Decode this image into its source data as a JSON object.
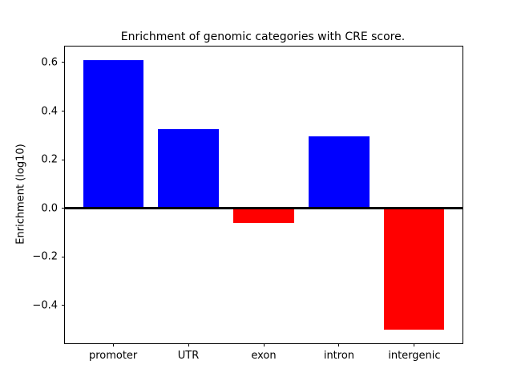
{
  "chart_data": {
    "type": "bar",
    "title": "Enrichment of genomic categories with CRE score.",
    "xlabel": "",
    "ylabel": "Enrichment (log10)",
    "categories": [
      "promoter",
      "UTR",
      "exon",
      "intron",
      "intergenic"
    ],
    "values": [
      0.61,
      0.325,
      -0.06,
      0.295,
      -0.5
    ],
    "positive_color": "#0000ff",
    "negative_color": "#ff0000",
    "bar_width": 0.8,
    "xlim": [
      -0.64,
      4.64
    ],
    "ylim": [
      -0.556,
      0.666
    ],
    "yticks": [
      0.6,
      0.4,
      0.2,
      0.0,
      -0.2,
      -0.4
    ],
    "ytick_labels": [
      "0.6",
      "0.4",
      "0.2",
      "0.0",
      "−0.2",
      "−0.4"
    ],
    "zero_line": true,
    "grid": false,
    "legend": null,
    "background_color": "#ffffff",
    "text_color": "#000000"
  }
}
